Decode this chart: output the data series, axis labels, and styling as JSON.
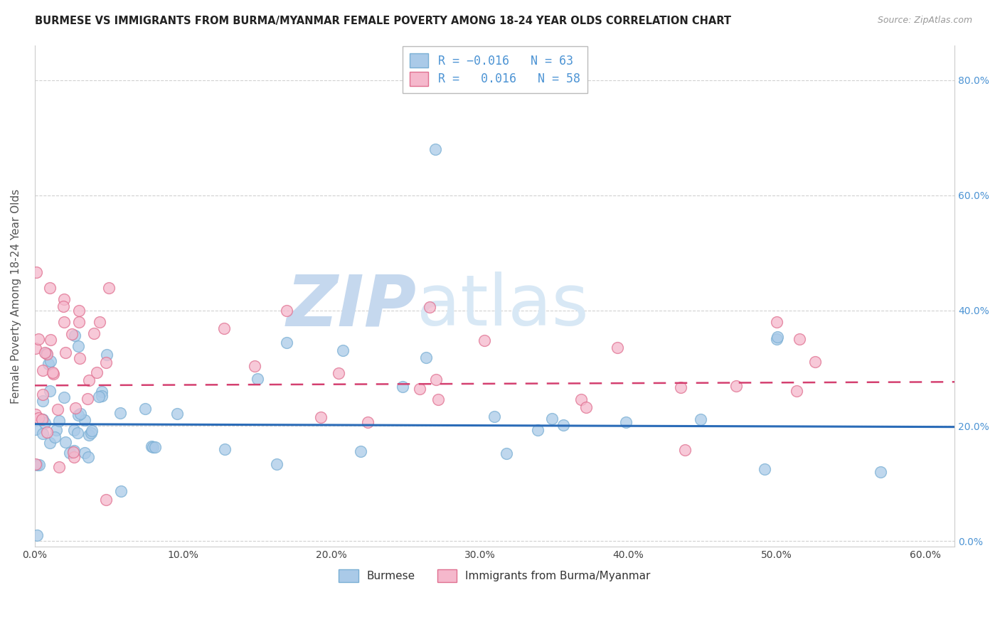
{
  "title": "BURMESE VS IMMIGRANTS FROM BURMA/MYANMAR FEMALE POVERTY AMONG 18-24 YEAR OLDS CORRELATION CHART",
  "source": "Source: ZipAtlas.com",
  "ylabel": "Female Poverty Among 18-24 Year Olds",
  "xlim": [
    0.0,
    0.62
  ],
  "ylim": [
    -0.01,
    0.86
  ],
  "yticks": [
    0.0,
    0.2,
    0.4,
    0.6,
    0.8
  ],
  "xticks": [
    0.0,
    0.1,
    0.2,
    0.3,
    0.4,
    0.5,
    0.6
  ],
  "series": [
    {
      "name": "Burmese",
      "R": -0.016,
      "N": 63,
      "scatter_facecolor": "#aacae8",
      "scatter_edgecolor": "#7aafd4",
      "trend_color": "#2b6cb8",
      "trend_style": "solid",
      "trend_intercept": 0.203,
      "trend_slope": -0.008
    },
    {
      "name": "Immigrants from Burma/Myanmar",
      "R": 0.016,
      "N": 58,
      "scatter_facecolor": "#f5b8cc",
      "scatter_edgecolor": "#e07090",
      "trend_color": "#d44070",
      "trend_style": "dashed",
      "trend_intercept": 0.27,
      "trend_slope": 0.01
    }
  ],
  "background_color": "#ffffff",
  "grid_color": "#cccccc",
  "title_color": "#222222",
  "axis_label_color": "#555555",
  "right_tick_color": "#4d94d4",
  "source_color": "#999999",
  "legend_text_color": "#4d94d4",
  "legend_n_color": "#333333",
  "wm_zip_color": "#c5d8ee",
  "wm_atlas_color": "#d8e8f5"
}
